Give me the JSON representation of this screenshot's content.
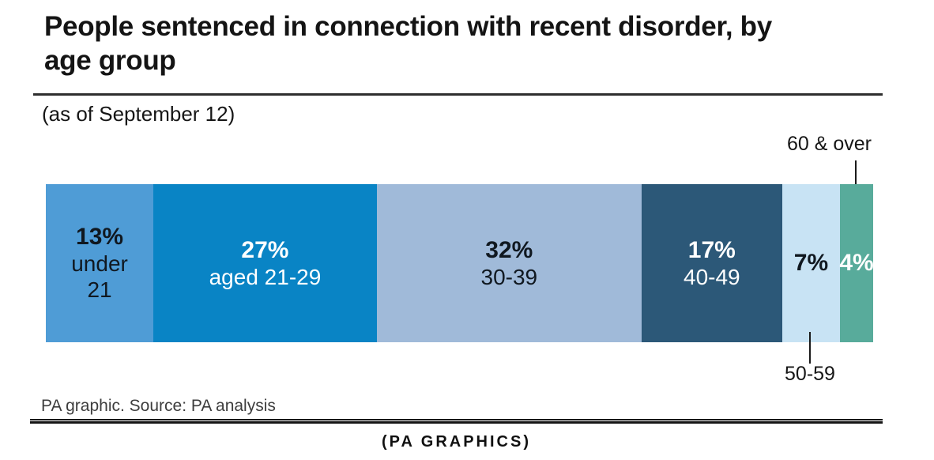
{
  "chart_data": {
    "type": "bar",
    "variant": "horizontal-stacked-100-percent",
    "title": "People sentenced in connection with recent disorder, by age group",
    "subtitle": "(as of September 12)",
    "unit": "percent",
    "categories": [
      "under 21",
      "aged 21-29",
      "30-39",
      "40-49",
      "50-59",
      "60 & over"
    ],
    "values": [
      13,
      27,
      32,
      17,
      7,
      4
    ],
    "segments": [
      {
        "category": "under 21",
        "value": 13,
        "value_label": "13%",
        "in_bar_lines": [
          "under",
          "21"
        ],
        "color": "#4f9cd6",
        "text_color": "#101820"
      },
      {
        "category": "aged 21-29",
        "value": 27,
        "value_label": "27%",
        "in_bar_lines": [
          "aged 21-29"
        ],
        "color": "#0984c5",
        "text_color": "#ffffff"
      },
      {
        "category": "30-39",
        "value": 32,
        "value_label": "32%",
        "in_bar_lines": [
          "30-39"
        ],
        "color": "#a0bad9",
        "text_color": "#101820"
      },
      {
        "category": "40-49",
        "value": 17,
        "value_label": "17%",
        "in_bar_lines": [
          "40-49"
        ],
        "color": "#2c5878",
        "text_color": "#ffffff"
      },
      {
        "category": "50-59",
        "value": 7,
        "value_label": "7%",
        "in_bar_lines": [],
        "color": "#c8e3f4",
        "text_color": "#101820"
      },
      {
        "category": "60 & over",
        "value": 4,
        "value_label": "4%",
        "in_bar_lines": [],
        "color": "#58ab9b",
        "text_color": "#ffffff"
      }
    ],
    "callouts": {
      "above_bar": "60 & over",
      "below_bar": "50-59"
    },
    "legend": "none",
    "grid": false,
    "source": "PA graphic. Source: PA analysis",
    "credit": "(PA GRAPHICS)"
  }
}
